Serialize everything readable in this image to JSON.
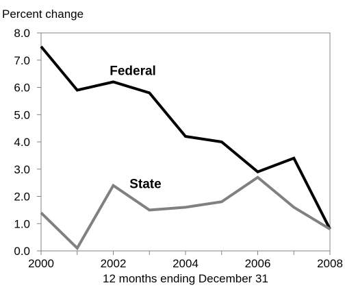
{
  "chart_data": {
    "type": "line",
    "ylabel": "Percent change",
    "xlabel": "12 months ending December 31",
    "x": [
      2000,
      2001,
      2002,
      2003,
      2004,
      2005,
      2006,
      2007,
      2008
    ],
    "x_ticks": [
      "2000",
      "2002",
      "2004",
      "2006",
      "2008"
    ],
    "y_ticks": [
      "0.0",
      "1.0",
      "2.0",
      "3.0",
      "4.0",
      "5.0",
      "6.0",
      "7.0",
      "8.0"
    ],
    "xlim": [
      2000,
      2008
    ],
    "ylim": [
      0,
      8
    ],
    "grid": false,
    "series": [
      {
        "name": "Federal",
        "color": "#000000",
        "values": [
          7.5,
          5.9,
          6.2,
          5.8,
          4.2,
          4.0,
          2.9,
          3.4,
          0.8
        ]
      },
      {
        "name": "State",
        "color": "#808080",
        "values": [
          1.4,
          0.1,
          2.4,
          1.5,
          1.6,
          1.8,
          2.7,
          1.6,
          0.8
        ]
      }
    ]
  }
}
